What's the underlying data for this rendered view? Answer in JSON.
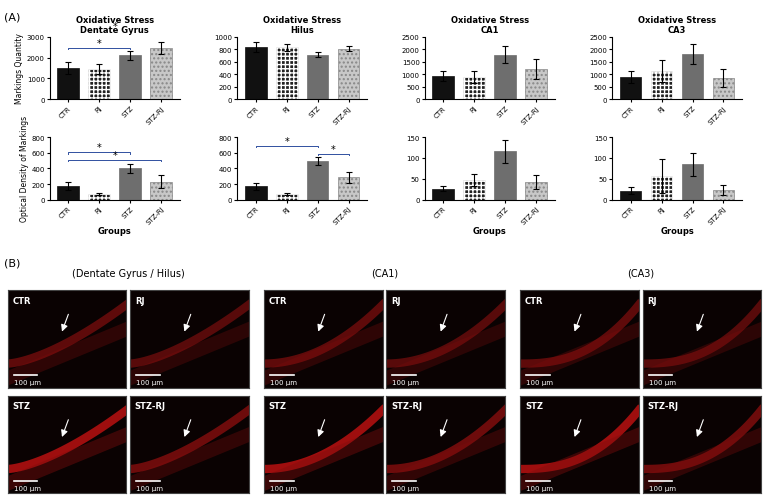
{
  "chart_data": [
    {
      "type": "bar",
      "title": "Oxidative Stress\nDentate Gyrus",
      "ylabel": "Markings Quantity",
      "categories": [
        "CTR",
        "RJ",
        "STZ",
        "STZ-RJ"
      ],
      "values": [
        1500,
        1450,
        2100,
        2450
      ],
      "errors": [
        300,
        250,
        200,
        300
      ],
      "colors": [
        "#111111",
        "#222222",
        "#6e6e6e",
        "#c8c8c8"
      ],
      "ylim": [
        0,
        3000
      ],
      "yticks": [
        0,
        1000,
        2000,
        3000
      ],
      "significance": [
        {
          "pair": [
            0,
            2
          ],
          "label": "*"
        },
        {
          "pair": [
            0,
            3
          ],
          "label": "*"
        }
      ]
    },
    {
      "type": "bar",
      "title": "Oxidative Stress\nHilus",
      "categories": [
        "CTR",
        "RJ",
        "STZ",
        "STZ-RJ"
      ],
      "values": [
        830,
        830,
        710,
        810
      ],
      "errors": [
        80,
        60,
        40,
        40
      ],
      "colors": [
        "#111111",
        "#222222",
        "#6e6e6e",
        "#c8c8c8"
      ],
      "ylim": [
        0,
        1000
      ],
      "yticks": [
        0,
        200,
        400,
        600,
        800,
        1000
      ]
    },
    {
      "type": "bar",
      "title": "Oxidative Stress\nCA1",
      "categories": [
        "CTR",
        "RJ",
        "STZ",
        "STZ-RJ"
      ],
      "values": [
        950,
        900,
        1780,
        1220
      ],
      "errors": [
        200,
        250,
        330,
        400
      ],
      "colors": [
        "#111111",
        "#222222",
        "#6e6e6e",
        "#c8c8c8"
      ],
      "ylim": [
        0,
        2500
      ],
      "yticks": [
        0,
        500,
        1000,
        1500,
        2000,
        2500
      ]
    },
    {
      "type": "bar",
      "title": "Oxidative Stress\nCA3",
      "categories": [
        "CTR",
        "RJ",
        "STZ",
        "STZ-RJ"
      ],
      "values": [
        900,
        1120,
        1820,
        850
      ],
      "errors": [
        250,
        430,
        400,
        370
      ],
      "colors": [
        "#111111",
        "#222222",
        "#6e6e6e",
        "#c8c8c8"
      ],
      "ylim": [
        0,
        2500
      ],
      "yticks": [
        0,
        500,
        1000,
        1500,
        2000,
        2500
      ]
    },
    {
      "type": "bar",
      "ylabel": "Optical Density of Markings",
      "xlabel": "Groups",
      "categories": [
        "CTR",
        "RJ",
        "STZ",
        "STZ-RJ"
      ],
      "values": [
        180,
        75,
        400,
        230
      ],
      "errors": [
        50,
        15,
        60,
        80
      ],
      "colors": [
        "#111111",
        "#222222",
        "#6e6e6e",
        "#c8c8c8"
      ],
      "ylim": [
        0,
        800
      ],
      "yticks": [
        0,
        200,
        400,
        600,
        800
      ],
      "significance": [
        {
          "pair": [
            0,
            3
          ],
          "label": "*"
        },
        {
          "pair": [
            0,
            2
          ],
          "label": "*"
        }
      ]
    },
    {
      "type": "bar",
      "categories": [
        "CTR",
        "RJ",
        "STZ",
        "STZ-RJ"
      ],
      "values": [
        170,
        70,
        490,
        290
      ],
      "errors": [
        40,
        15,
        50,
        70
      ],
      "colors": [
        "#111111",
        "#222222",
        "#6e6e6e",
        "#c8c8c8"
      ],
      "ylim": [
        0,
        800
      ],
      "yticks": [
        0,
        200,
        400,
        600,
        800
      ],
      "significance": [
        {
          "pair": [
            2,
            3
          ],
          "label": "*"
        },
        {
          "pair": [
            0,
            2
          ],
          "label": "*"
        }
      ]
    },
    {
      "type": "bar",
      "xlabel": "Groups",
      "categories": [
        "CTR",
        "RJ",
        "STZ",
        "STZ-RJ"
      ],
      "values": [
        27,
        47,
        116,
        43
      ],
      "errors": [
        5,
        15,
        28,
        16
      ],
      "colors": [
        "#111111",
        "#222222",
        "#6e6e6e",
        "#c8c8c8"
      ],
      "ylim": [
        0,
        150
      ],
      "yticks": [
        0,
        50,
        100,
        150
      ]
    },
    {
      "type": "bar",
      "xlabel": "Groups",
      "categories": [
        "CTR",
        "RJ",
        "STZ",
        "STZ-RJ"
      ],
      "values": [
        22,
        57,
        85,
        23
      ],
      "errors": [
        8,
        40,
        27,
        12
      ],
      "colors": [
        "#111111",
        "#222222",
        "#6e6e6e",
        "#c8c8c8"
      ],
      "ylim": [
        0,
        150
      ],
      "yticks": [
        0,
        50,
        100,
        150
      ]
    }
  ],
  "panel_labels": [
    "(A)",
    "(B)"
  ],
  "micrographs": {
    "regions": [
      {
        "title": "(Dentate Gyrus / Hilus)",
        "groups": [
          "CTR",
          "RJ",
          "STZ",
          "STZ-RJ"
        ]
      },
      {
        "title": "(CA1)",
        "groups": [
          "CTR",
          "RJ",
          "STZ",
          "STZ-RJ"
        ]
      },
      {
        "title": "(CA3)",
        "groups": [
          "CTR",
          "RJ",
          "STZ",
          "STZ-RJ"
        ]
      }
    ],
    "scale_bar": "100 µm"
  }
}
